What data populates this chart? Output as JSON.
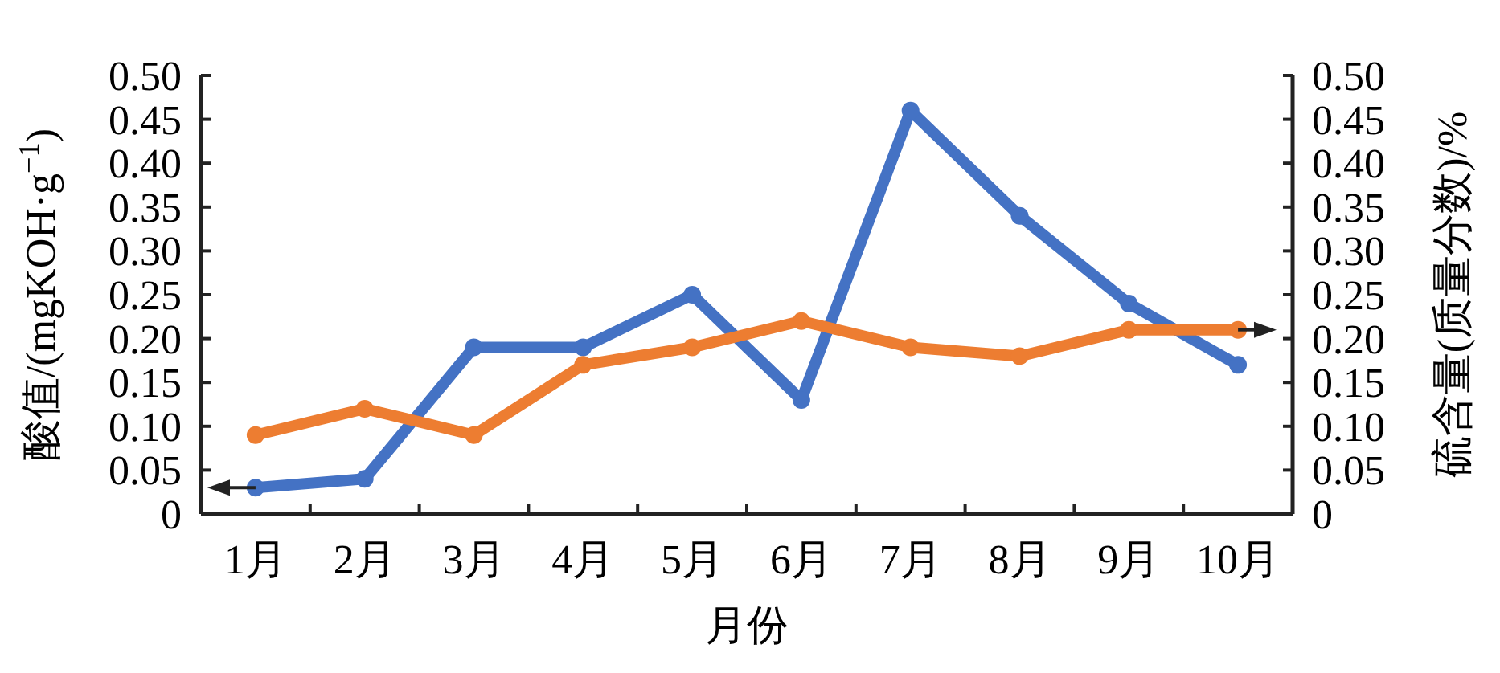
{
  "chart_data": {
    "type": "line",
    "xlabel": "月份",
    "ylabel": "酸值/(mgKOH·g$^{−1}$)",
    "y2label": "硫含量(质量分数)/%",
    "categories": [
      "1月",
      "2月",
      "3月",
      "4月",
      "5月",
      "6月",
      "7月",
      "8月",
      "9月",
      "10月"
    ],
    "series": [
      {
        "color": "#4472c4",
        "values": [
          0.03,
          0.04,
          0.19,
          0.19,
          0.25,
          0.13,
          0.46,
          0.34,
          0.24,
          0.17
        ]
      },
      {
        "color": "#ed7d31",
        "axis": "y2",
        "values": [
          0.09,
          0.12,
          0.09,
          0.17,
          0.19,
          0.22,
          0.19,
          0.18,
          0.21,
          0.21
        ]
      }
    ],
    "ylim": [
      0,
      0.5
    ],
    "yticks": [
      0,
      {
        "value": 0.05,
        "label": "0.05"
      },
      {
        "value": 0.1,
        "label": "0.10"
      },
      {
        "value": 0.15,
        "label": "0.15"
      },
      {
        "value": 0.2,
        "label": "0.20"
      },
      {
        "value": 0.25,
        "label": "0.25"
      },
      {
        "value": 0.3,
        "label": "0.30"
      },
      {
        "value": 0.35,
        "label": "0.35"
      },
      {
        "value": 0.4,
        "label": "0.40"
      },
      {
        "value": 0.45,
        "label": "0.45"
      },
      {
        "value": 0.5,
        "label": "0.50"
      }
    ],
    "y2lim": [
      0,
      0.5
    ],
    "y2ticks": [
      0,
      {
        "value": 0.05,
        "label": "0.05"
      },
      {
        "value": 0.1,
        "label": "0.10"
      },
      {
        "value": 0.15,
        "label": "0.15"
      },
      {
        "value": 0.2,
        "label": "0.20"
      },
      {
        "value": 0.25,
        "label": "0.25"
      },
      {
        "value": 0.3,
        "label": "0.30"
      },
      {
        "value": 0.35,
        "label": "0.35"
      },
      {
        "value": 0.4,
        "label": "0.40"
      },
      {
        "value": 0.45,
        "label": "0.45"
      },
      {
        "value": 0.5,
        "label": "0.50"
      }
    ],
    "marker": "circle",
    "line_style": "solid",
    "grid": false
  }
}
